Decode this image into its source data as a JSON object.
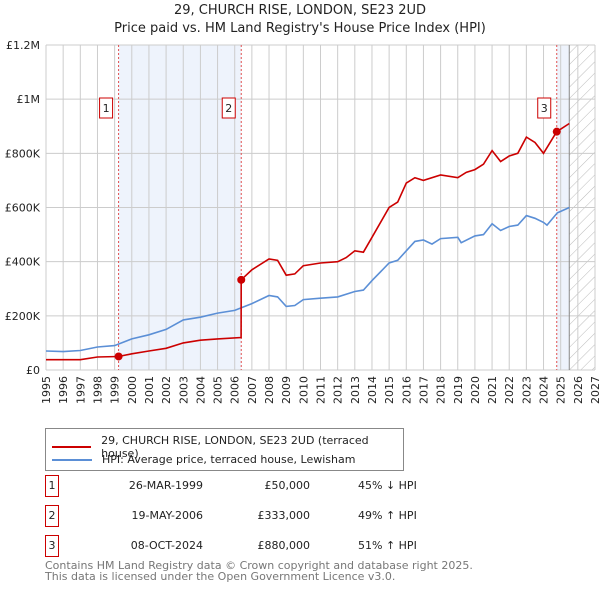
{
  "chart_data": {
    "type": "line",
    "title": "29, CHURCH RISE, LONDON, SE23 2UD",
    "subtitle": "Price paid vs. HM Land Registry's House Price Index (HPI)",
    "xlim": [
      1995,
      2027
    ],
    "ylim": [
      0,
      1200000
    ],
    "x_ticks": [
      "1995",
      "1996",
      "1997",
      "1998",
      "1999",
      "2000",
      "2001",
      "2002",
      "2003",
      "2004",
      "2005",
      "2006",
      "2007",
      "2008",
      "2009",
      "2010",
      "2011",
      "2012",
      "2013",
      "2014",
      "2015",
      "2016",
      "2017",
      "2018",
      "2019",
      "2020",
      "2021",
      "2022",
      "2023",
      "2024",
      "2025",
      "2026",
      "2027"
    ],
    "y_ticks": [
      {
        "v": 0,
        "label": "£0"
      },
      {
        "v": 200000,
        "label": "£200K"
      },
      {
        "v": 400000,
        "label": "£400K"
      },
      {
        "v": 600000,
        "label": "£600K"
      },
      {
        "v": 800000,
        "label": "£800K"
      },
      {
        "v": 1000000,
        "label": "£1M"
      },
      {
        "v": 1200000,
        "label": "£1.2M"
      }
    ],
    "grid": true,
    "shaded_periods": [
      [
        1999.23,
        2006.38
      ],
      [
        2024.77,
        2025.5
      ]
    ],
    "forecast_hatch_from": 2025.5,
    "series": [
      {
        "name": "29, CHURCH RISE, LONDON, SE23 2UD (terraced house)",
        "color": "#cc0000",
        "x": [
          1995,
          1997,
          1998,
          1999.23,
          2000,
          2001,
          2002,
          2003,
          2004,
          2005,
          2006.37,
          2006.38,
          2007,
          2008,
          2008.5,
          2009,
          2009.5,
          2010,
          2011,
          2012,
          2012.5,
          2013,
          2013.5,
          2014,
          2015,
          2015.5,
          2016,
          2016.5,
          2017,
          2018,
          2019,
          2019.5,
          2020,
          2020.5,
          2021,
          2021.5,
          2022,
          2022.5,
          2023,
          2023.5,
          2024,
          2024.77,
          2025.5
        ],
        "y": [
          38000,
          38000,
          48000,
          50000,
          60000,
          70000,
          80000,
          100000,
          110000,
          115000,
          120000,
          333000,
          370000,
          410000,
          405000,
          350000,
          355000,
          385000,
          395000,
          400000,
          415000,
          440000,
          435000,
          490000,
          600000,
          620000,
          690000,
          710000,
          700000,
          720000,
          710000,
          730000,
          740000,
          760000,
          810000,
          770000,
          790000,
          800000,
          860000,
          840000,
          800000,
          880000,
          910000
        ]
      },
      {
        "name": "HPI: Average price, terraced house, Lewisham",
        "color": "#5b8fd6",
        "x": [
          1995,
          1996,
          1997,
          1998,
          1999,
          2000,
          2001,
          2002,
          2003,
          2004,
          2005,
          2006,
          2007,
          2008,
          2008.5,
          2009,
          2009.5,
          2010,
          2011,
          2012,
          2013,
          2013.5,
          2014,
          2015,
          2015.5,
          2016,
          2016.5,
          2017,
          2017.5,
          2018,
          2019,
          2019.2,
          2020,
          2020.5,
          2021,
          2021.5,
          2022,
          2022.5,
          2023,
          2023.5,
          2024,
          2024.2,
          2024.8,
          2025.5
        ],
        "y": [
          70000,
          68000,
          72000,
          85000,
          90000,
          115000,
          130000,
          150000,
          185000,
          195000,
          210000,
          220000,
          245000,
          275000,
          270000,
          235000,
          238000,
          260000,
          265000,
          270000,
          290000,
          295000,
          330000,
          395000,
          405000,
          440000,
          475000,
          480000,
          465000,
          485000,
          490000,
          470000,
          495000,
          500000,
          540000,
          515000,
          530000,
          535000,
          570000,
          560000,
          545000,
          535000,
          580000,
          600000
        ]
      }
    ],
    "markers": [
      {
        "label": "1",
        "x": 1999.23,
        "y": 50000
      },
      {
        "label": "2",
        "x": 2006.38,
        "y": 333000
      },
      {
        "label": "3",
        "x": 2024.77,
        "y": 880000
      }
    ]
  },
  "legend": {
    "property": "29, CHURCH RISE, LONDON, SE23 2UD (terraced house)",
    "hpi": "HPI: Average price, terraced house, Lewisham"
  },
  "transactions": [
    {
      "num": "1",
      "date": "26-MAR-1999",
      "price": "£50,000",
      "hpi": "45% ↓ HPI"
    },
    {
      "num": "2",
      "date": "19-MAY-2006",
      "price": "£333,000",
      "hpi": "49% ↑ HPI"
    },
    {
      "num": "3",
      "date": "08-OCT-2024",
      "price": "£880,000",
      "hpi": "51% ↑ HPI"
    }
  ],
  "footer": {
    "line1": "Contains HM Land Registry data © Crown copyright and database right 2025.",
    "line2": "This data is licensed under the Open Government Licence v3.0."
  }
}
